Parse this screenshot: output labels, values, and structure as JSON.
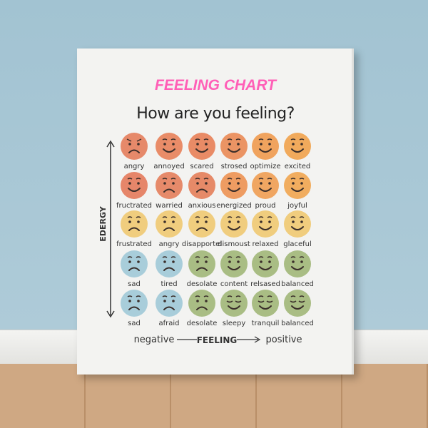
{
  "title": "FEELING CHART",
  "subtitle": "How are you feeling?",
  "y_axis_label": "EDERGY",
  "x_axis": {
    "left": "negative",
    "center": "FEELING",
    "right": "positive"
  },
  "rows": [
    {
      "color": "#e6896a",
      "faces": [
        {
          "label": "angry",
          "mood": "angry"
        },
        {
          "label": "annoyed",
          "mood": "smile"
        },
        {
          "label": "scared",
          "mood": "smile"
        },
        {
          "label": "strosed",
          "mood": "smile"
        },
        {
          "label": "optimize",
          "mood": "smile"
        },
        {
          "label": "excited",
          "mood": "smile"
        }
      ]
    },
    {
      "color": "#e88c62",
      "faces": [
        {
          "label": "fructrated",
          "mood": "smile"
        },
        {
          "label": "warried",
          "mood": "frown"
        },
        {
          "label": "anxious",
          "mood": "frown"
        },
        {
          "label": "energized",
          "mood": "smile"
        },
        {
          "label": "proud",
          "mood": "smile"
        },
        {
          "label": "joyful",
          "mood": "smile"
        }
      ]
    },
    {
      "color": "#f0cd7e",
      "faces": [
        {
          "label": "frustrated",
          "mood": "frown"
        },
        {
          "label": "angry",
          "mood": "frown"
        },
        {
          "label": "disapportel",
          "mood": "frown"
        },
        {
          "label": "dismoust",
          "mood": "smile"
        },
        {
          "label": "relaxed",
          "mood": "smile"
        },
        {
          "label": "glaceful",
          "mood": "smile"
        }
      ]
    },
    {
      "color": "#a9bd84",
      "faces": [
        {
          "label": "sad",
          "mood": "frown",
          "color": "#a8cdda"
        },
        {
          "label": "tired",
          "mood": "frown",
          "color": "#a8cdda"
        },
        {
          "label": "desolate",
          "mood": "frown"
        },
        {
          "label": "content",
          "mood": "smile"
        },
        {
          "label": "relsased",
          "mood": "smile"
        },
        {
          "label": "balanced",
          "mood": "smile"
        }
      ]
    },
    {
      "color": "#a9bd84",
      "faces": [
        {
          "label": "sad",
          "mood": "frown",
          "color": "#a8cdda"
        },
        {
          "label": "afraid",
          "mood": "frown",
          "color": "#a8cdda"
        },
        {
          "label": "desolate",
          "mood": "frown"
        },
        {
          "label": "sleepy",
          "mood": "sleepy"
        },
        {
          "label": "tranquil",
          "mood": "sleepy"
        },
        {
          "label": "balanced",
          "mood": "sleepy"
        }
      ]
    }
  ],
  "row_tints": [
    [
      "#e6896a",
      "#e98c68",
      "#e98b66",
      "#eb9464",
      "#f0a35e",
      "#f1aa5c"
    ],
    [
      "#e6866a",
      "#e68a6a",
      "#e68a68",
      "#ee9c62",
      "#f0a662",
      "#f1ad5f"
    ]
  ]
}
